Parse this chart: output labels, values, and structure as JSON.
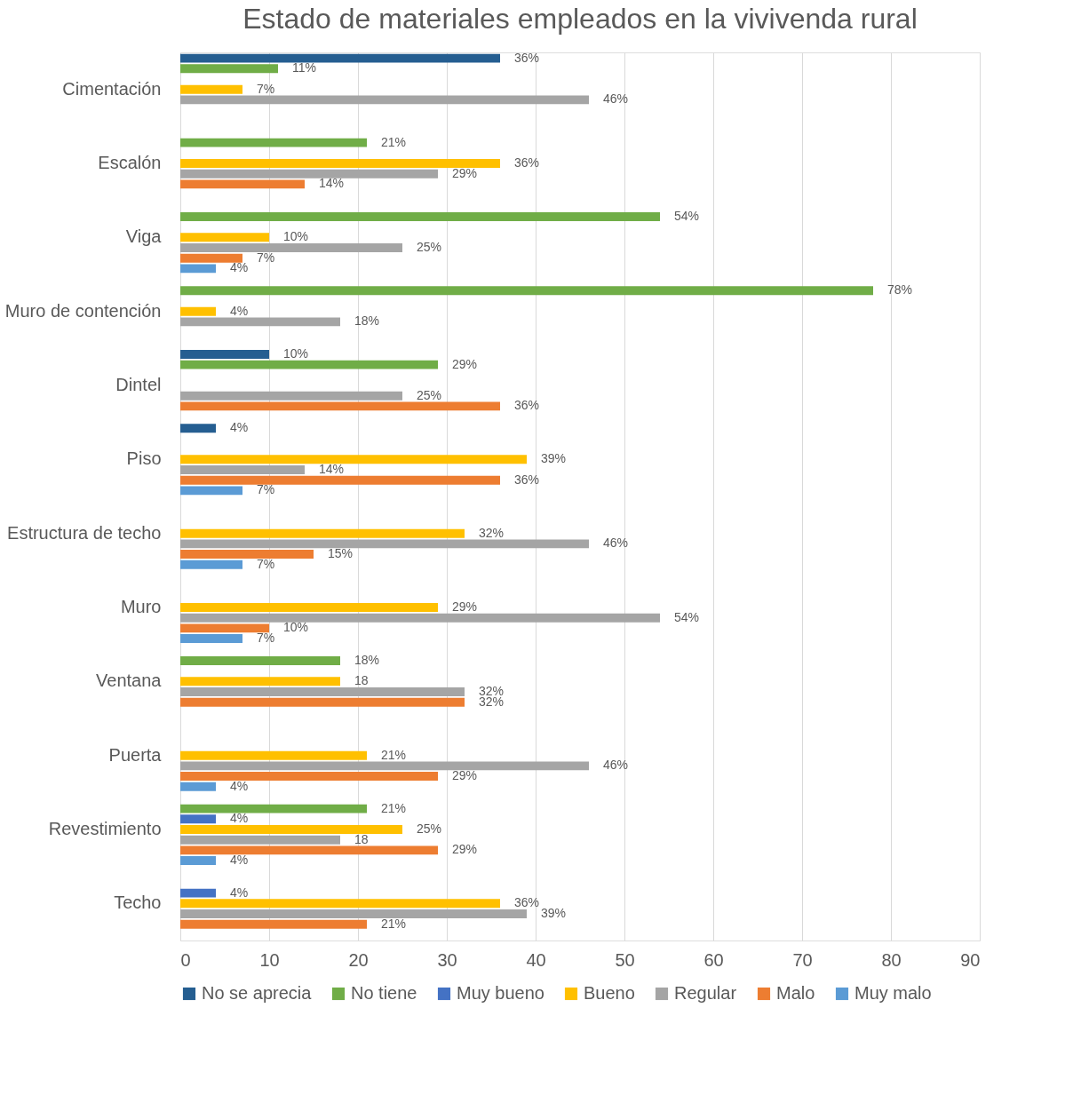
{
  "chart_data": {
    "type": "bar",
    "orientation": "horizontal",
    "title": "Estado de materiales empleados en la vivivenda rural",
    "categories": [
      "Cimentación",
      "Escalón",
      "Viga",
      "Muro de contención",
      "Dintel",
      "Piso",
      "Estructura de techo",
      "Muro",
      "Ventana",
      "Puerta",
      "Revestimiento",
      "Techo"
    ],
    "series": [
      {
        "name": "No se aprecia",
        "color": "#255e91",
        "values": [
          36,
          null,
          null,
          null,
          10,
          4,
          null,
          null,
          null,
          null,
          null,
          null
        ],
        "value_labels": [
          "36%",
          null,
          null,
          null,
          "10%",
          "4%",
          null,
          null,
          null,
          null,
          null,
          null
        ]
      },
      {
        "name": "No tiene",
        "color": "#70ad47",
        "values": [
          11,
          21,
          54,
          78,
          29,
          null,
          null,
          null,
          18,
          null,
          21,
          null
        ],
        "value_labels": [
          "11%",
          "21%",
          "54%",
          "78%",
          "29%",
          null,
          null,
          null,
          "18%",
          null,
          "21%",
          null
        ]
      },
      {
        "name": "Muy bueno",
        "color": "#4472c4",
        "values": [
          null,
          null,
          null,
          null,
          null,
          null,
          null,
          null,
          null,
          null,
          4,
          4
        ],
        "value_labels": [
          null,
          null,
          null,
          null,
          null,
          null,
          null,
          null,
          null,
          null,
          "4%",
          "4%"
        ]
      },
      {
        "name": "Bueno",
        "color": "#ffc000",
        "values": [
          7,
          36,
          10,
          4,
          null,
          39,
          32,
          29,
          18,
          21,
          25,
          36
        ],
        "value_labels": [
          "7%",
          "36%",
          "10%",
          "4%",
          null,
          "39%",
          "32%",
          "29%",
          "18",
          "21%",
          "25%",
          "36%"
        ]
      },
      {
        "name": "Regular",
        "color": "#a5a5a5",
        "values": [
          46,
          29,
          25,
          18,
          25,
          14,
          46,
          54,
          32,
          46,
          18,
          39
        ],
        "value_labels": [
          "46%",
          "29%",
          "25%",
          "18%",
          "25%",
          "14%",
          "46%",
          "54%",
          "32%",
          "46%",
          "18",
          "39%"
        ]
      },
      {
        "name": "Malo",
        "color": "#ed7d31",
        "values": [
          null,
          14,
          7,
          null,
          36,
          36,
          15,
          10,
          32,
          29,
          29,
          21
        ],
        "value_labels": [
          null,
          "14%",
          "7%",
          null,
          "36%",
          "36%",
          "15%",
          "10%",
          "32%",
          "29%",
          "29%",
          "21%"
        ]
      },
      {
        "name": "Muy malo",
        "color": "#5b9bd5",
        "values": [
          null,
          null,
          4,
          null,
          null,
          7,
          7,
          7,
          null,
          4,
          4,
          null
        ],
        "value_labels": [
          null,
          null,
          "4%",
          null,
          null,
          "7%",
          "7%",
          "7%",
          null,
          "4%",
          "4%",
          null
        ]
      }
    ],
    "xlim": [
      0,
      90
    ],
    "xticks": [
      0,
      10,
      20,
      30,
      40,
      50,
      60,
      70,
      80,
      90
    ],
    "grid": "x",
    "legend": "bottom"
  }
}
